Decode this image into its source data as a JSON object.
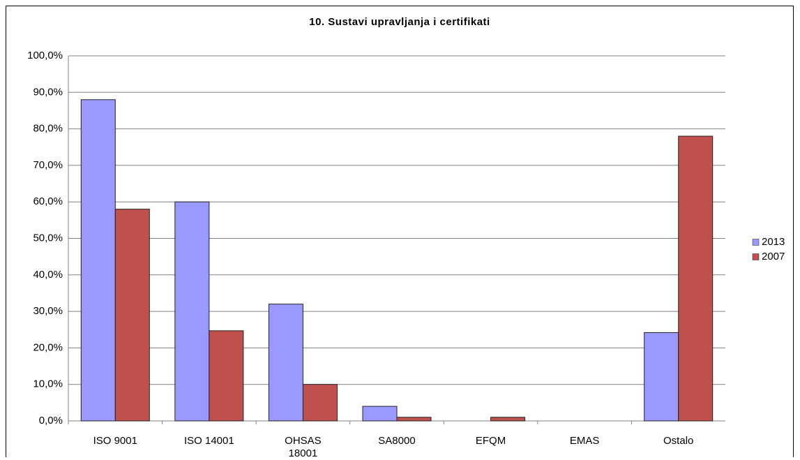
{
  "chart_data": {
    "type": "bar",
    "title": "10. Sustavi upravljanja i certifikati",
    "categories": [
      "ISO 9001",
      "ISO 14001",
      "OHSAS 18001",
      "SA8000",
      "EFQM",
      "EMAS",
      "Ostalo"
    ],
    "series": [
      {
        "name": "2013",
        "color": "#9999ff",
        "values": [
          88,
          60,
          32,
          4,
          0,
          0,
          24.2
        ]
      },
      {
        "name": "2007",
        "color": "#c0504d",
        "values": [
          58,
          24.7,
          10,
          1,
          1,
          0,
          78
        ]
      }
    ],
    "ylim": [
      0,
      100
    ],
    "yticks": [
      {
        "value": 0,
        "label": "0,0%"
      },
      {
        "value": 10,
        "label": "10,0%"
      },
      {
        "value": 20,
        "label": "20,0%"
      },
      {
        "value": 30,
        "label": "30,0%"
      },
      {
        "value": 40,
        "label": "40,0%"
      },
      {
        "value": 50,
        "label": "50,0%"
      },
      {
        "value": 60,
        "label": "60,0%"
      },
      {
        "value": 70,
        "label": "70,0%"
      },
      {
        "value": 80,
        "label": "80,0%"
      },
      {
        "value": 90,
        "label": "90,0%"
      },
      {
        "value": 100,
        "label": "100,0%"
      }
    ],
    "grid": true,
    "legend": "right"
  }
}
